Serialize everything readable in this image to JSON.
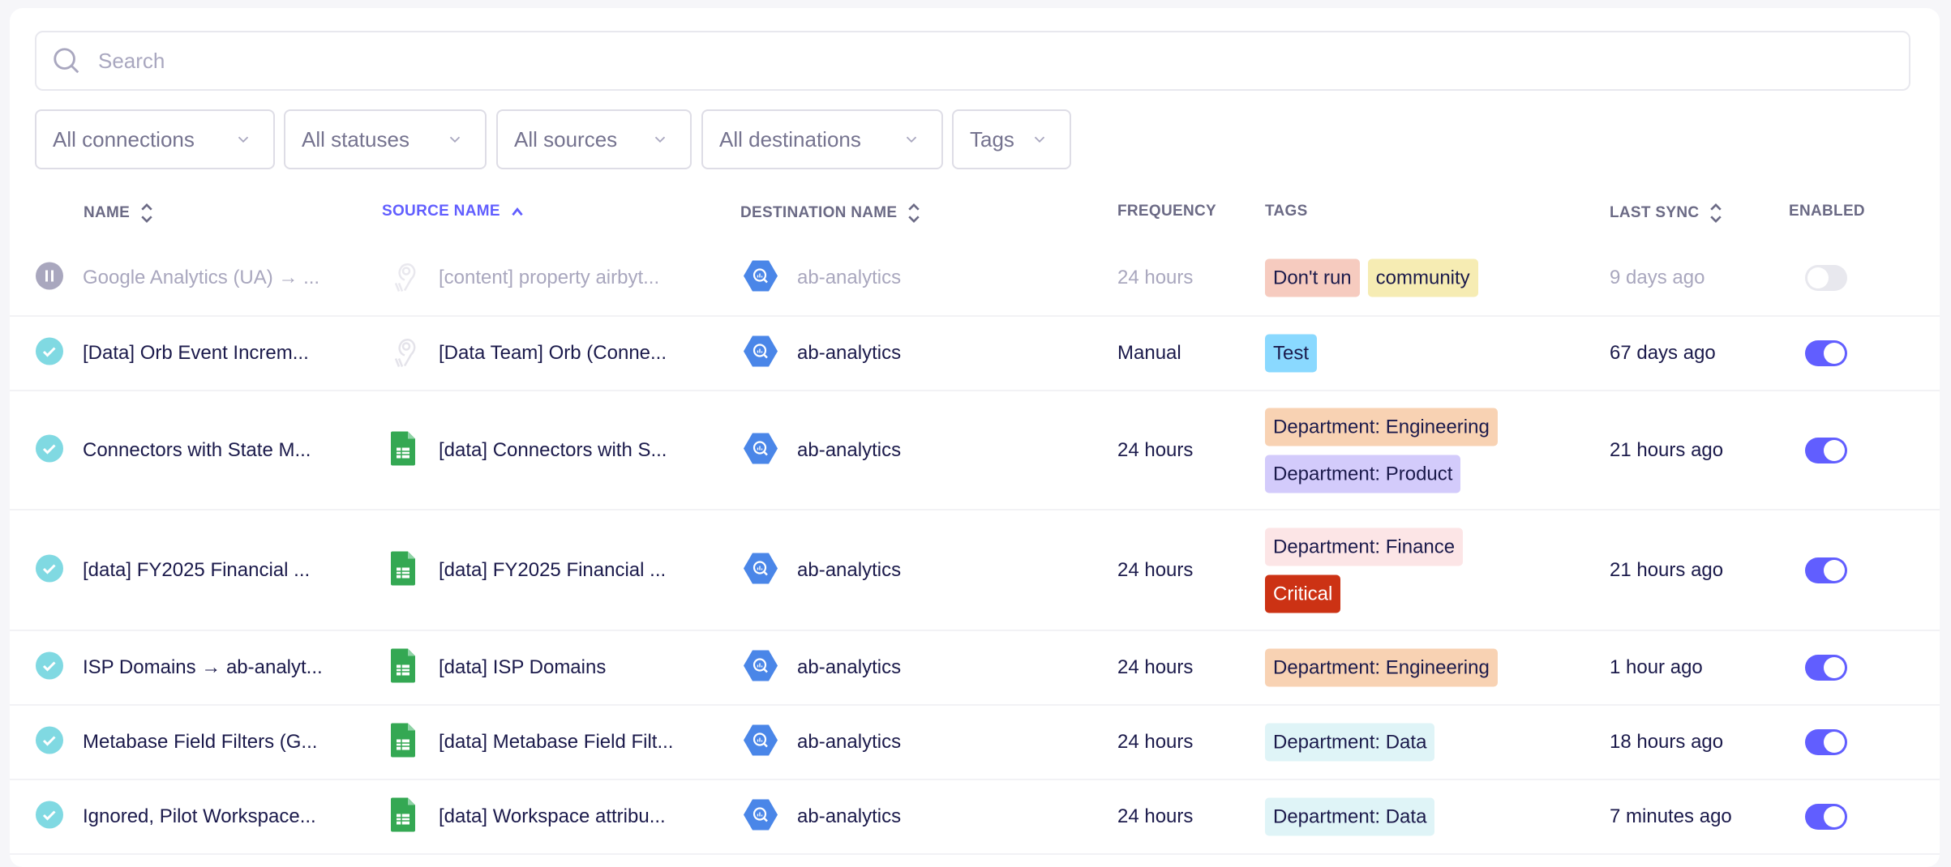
{
  "search": {
    "placeholder": "Search"
  },
  "filters": [
    "All connections",
    "All statuses",
    "All sources",
    "All destinations",
    "Tags"
  ],
  "columns": {
    "name": "NAME",
    "source": "SOURCE NAME",
    "destination": "DESTINATION NAME",
    "frequency": "FREQUENCY",
    "tags": "TAGS",
    "last_sync": "LAST SYNC",
    "enabled": "ENABLED"
  },
  "sorted_column": "source",
  "sort_direction": "ascending",
  "accent": "#615eff",
  "rows": [
    {
      "status": "paused",
      "name": "Google Analytics (UA) → ...",
      "source_icon": "airbyte-icon",
      "source": "[content] property airbyt...",
      "destination": "ab-analytics",
      "frequency": "24 hours",
      "tags": [
        {
          "label": "Don't run",
          "color": "#f6cbbf"
        },
        {
          "label": "community",
          "color": "#f6ecb3"
        }
      ],
      "last_sync": "9 days ago",
      "enabled": false
    },
    {
      "status": "success",
      "name": "[Data] Orb Event Increm...",
      "source_icon": "airbyte-icon",
      "source": "[Data Team] Orb (Conne...",
      "destination": "ab-analytics",
      "frequency": "Manual",
      "tags": [
        {
          "label": "Test",
          "color": "#8ad9ff"
        }
      ],
      "last_sync": "67 days ago",
      "enabled": true
    },
    {
      "status": "success",
      "name": "Connectors with State M...",
      "source_icon": "google-sheets-icon",
      "source": "[data] Connectors with S...",
      "destination": "ab-analytics",
      "frequency": "24 hours",
      "tags": [
        {
          "label": "Department: Engineering",
          "color": "#f8d2b3"
        },
        {
          "label": "Department: Product",
          "color": "#d3cbfb"
        }
      ],
      "last_sync": "21 hours ago",
      "enabled": true
    },
    {
      "status": "success",
      "name": "[data] FY2025 Financial ...",
      "source_icon": "google-sheets-icon",
      "source": "[data] FY2025 Financial ...",
      "destination": "ab-analytics",
      "frequency": "24 hours",
      "tags": [
        {
          "label": "Department: Finance",
          "color": "#fce5e6"
        },
        {
          "label": "Critical",
          "color": "#cc3214"
        }
      ],
      "last_sync": "21 hours ago",
      "enabled": true
    },
    {
      "status": "success",
      "name": "ISP Domains → ab-analyt...",
      "source_icon": "google-sheets-icon",
      "source": "[data] ISP Domains",
      "destination": "ab-analytics",
      "frequency": "24 hours",
      "tags": [
        {
          "label": "Department: Engineering",
          "color": "#f8d2b3"
        }
      ],
      "last_sync": "1 hour ago",
      "enabled": true
    },
    {
      "status": "success",
      "name": "Metabase Field Filters (G...",
      "source_icon": "google-sheets-icon",
      "source": "[data] Metabase Field Filt...",
      "destination": "ab-analytics",
      "frequency": "24 hours",
      "tags": [
        {
          "label": "Department: Data",
          "color": "#dff4f7"
        }
      ],
      "last_sync": "18 hours ago",
      "enabled": true
    },
    {
      "status": "success",
      "name": "Ignored, Pilot Workspace...",
      "source_icon": "google-sheets-icon",
      "source": "[data] Workspace attribu...",
      "destination": "ab-analytics",
      "frequency": "24 hours",
      "tags": [
        {
          "label": "Department: Data",
          "color": "#dff4f7"
        }
      ],
      "last_sync": "7 minutes ago",
      "enabled": true
    }
  ]
}
